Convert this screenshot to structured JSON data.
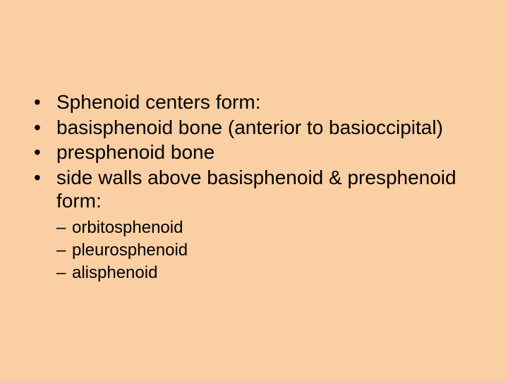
{
  "background_color": "#fbcfa4",
  "text_color": "#000000",
  "font_family": "Arial",
  "main_fontsize": 28,
  "sub_fontsize": 24,
  "bullets": [
    "Sphenoid centers form:",
    "basisphenoid bone (anterior to basioccipital)",
    "presphenoid bone",
    "side walls above basisphenoid & presphenoid form:"
  ],
  "sub_bullets": [
    "orbitosphenoid",
    "pleurosphenoid",
    "alisphenoid"
  ]
}
